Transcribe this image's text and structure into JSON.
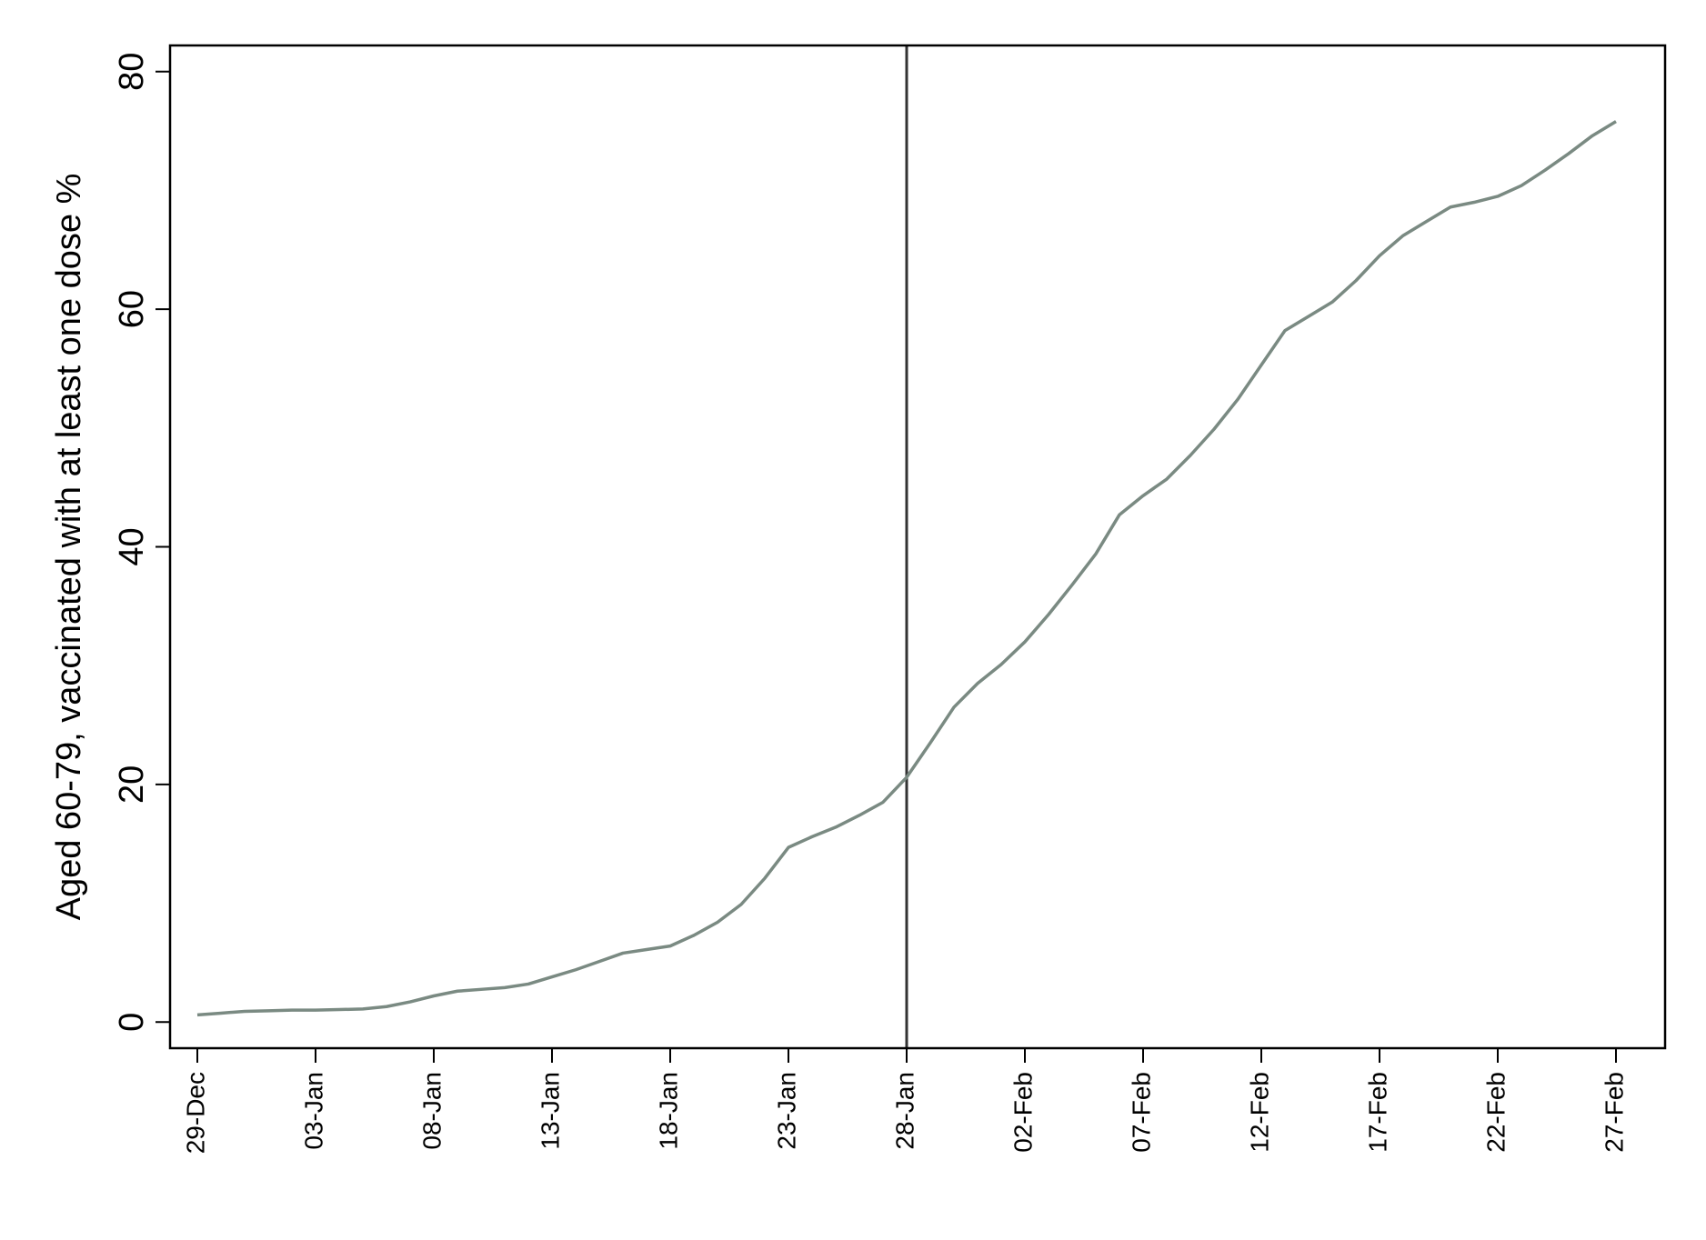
{
  "chart_data": {
    "type": "line",
    "y_label": "Aged 60-79, vaccinated with at least one dose %",
    "categories": [
      "29-Dec",
      null,
      null,
      null,
      null,
      "03-Jan",
      null,
      null,
      null,
      null,
      "08-Jan",
      null,
      null,
      null,
      null,
      "13-Jan",
      null,
      null,
      null,
      null,
      "18-Jan",
      null,
      null,
      null,
      null,
      "23-Jan",
      null,
      null,
      null,
      null,
      "28-Jan",
      null,
      null,
      null,
      null,
      "02-Feb",
      null,
      null,
      null,
      null,
      "07-Feb",
      null,
      null,
      null,
      null,
      "12-Feb",
      null,
      null,
      null,
      null,
      "17-Feb",
      null,
      null,
      null,
      null,
      "22-Feb",
      null,
      null,
      null,
      null,
      "27-Feb"
    ],
    "series": [
      {
        "color": "#7a8a82",
        "values": [
          0.6,
          0.75,
          0.9,
          0.95,
          1.0,
          1.0,
          1.05,
          1.1,
          1.3,
          1.7,
          2.2,
          2.6,
          2.75,
          2.9,
          3.2,
          3.8,
          4.4,
          5.1,
          5.8,
          6.1,
          6.4,
          7.3,
          8.4,
          9.9,
          12.1,
          14.7,
          15.6,
          16.4,
          17.4,
          18.5,
          20.6,
          23.5,
          26.5,
          28.5,
          30.1,
          32.0,
          34.3,
          36.8,
          39.4,
          42.7,
          44.3,
          45.7,
          47.7,
          49.9,
          52.4,
          55.3,
          58.2,
          59.4,
          60.6,
          62.4,
          64.5,
          66.2,
          67.4,
          68.6,
          69.0,
          69.5,
          70.4,
          71.7,
          73.1,
          74.6,
          75.8
        ]
      }
    ],
    "vline": "28-Jan",
    "ylim": [
      -2.2,
      82.2
    ],
    "yticks": [
      0,
      20,
      40,
      60,
      80
    ]
  }
}
